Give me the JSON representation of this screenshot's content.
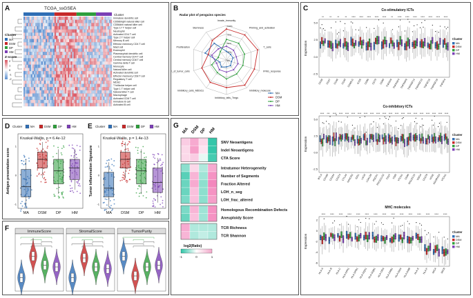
{
  "colors": {
    "MA": "#2f6eb5",
    "DSM": "#c62828",
    "DP": "#2e9e3c",
    "HM": "#7b3fb5",
    "heat_hi": "#d9535f",
    "heat_lo": "#5b8fd0",
    "pink": "#f2a7c9",
    "teal": "#2ec4a6"
  },
  "panels": {
    "A": {
      "letter": "A",
      "title": "TCGA_ssGSEA",
      "cluster_label": "Cluster",
      "legend_cluster_title": "Cluster",
      "legend_clusters": [
        "MA",
        "DSM",
        "DP",
        "HM"
      ],
      "legend_z_title": "Z-score",
      "legend_z_ticks": [
        "2",
        "1",
        "0",
        "-1",
        "-2"
      ],
      "rows": [
        "Immature dendritic cell",
        "CD56bright natural killer cell",
        "CD56dim natural killer cell",
        "Type 17 T helper cell",
        "Neutrophil",
        "Activated CD4 T cell",
        "Type 2 T helper cell",
        "Memory B cell",
        "Effector memeory CD4 T cell",
        "Mast cell",
        "Eosinophil",
        "Plasmacytoid dendritic cell",
        "Central memory CD4 T cell",
        "Central memory CD8 T cell",
        "Gamma delta T cell",
        "Monocyte",
        "Natural killer cell",
        "Activated dendritic cell",
        "Effector memeory CD8 T cell",
        "Regulatory T cell",
        "MDSC",
        "T follicular helper cell",
        "Type 1 T helper cell",
        "Natural killer T cell",
        "Macrophage",
        "Activated CD8 T cell",
        "Immature B cell",
        "Activated B cell"
      ]
    },
    "B": {
      "letter": "B",
      "title": "Radar plot of penguins species",
      "axes": [
        "Innate_immunity",
        "Priming_and_activation",
        "T_cells",
        "IFNG_response",
        "Inhibitory_molecule",
        "Inhibitory_tells_Tregs",
        "Inhibitory_cells_MDSCs",
        "Recognition_of_tumor_cells",
        "Proliferation",
        "Stemness"
      ],
      "ring_labels": [
        "0%",
        "25%",
        "50%",
        "75%",
        "100%"
      ],
      "legend": [
        "MA",
        "DSM",
        "DP",
        "HM"
      ]
    },
    "C": {
      "letter": "C",
      "sub1": {
        "title": "Co-stimulatory ICTs",
        "ylabel": "Expression",
        "yticks": [
          "5.0",
          "2.5",
          "0.0",
          "-2.5"
        ],
        "genes": [
          "CD28",
          "CD27",
          "CD48",
          "CD40",
          "CD80LG",
          "ICOS",
          "CD86",
          "CD70",
          "CD80",
          "TNFSF9",
          "TNFRSF4",
          "TNFRSF8",
          "TNFRSF14",
          "TNFRSF13",
          "TNFSF15",
          "TNFRSF18",
          "TNFSF4"
        ],
        "sig": [
          "**",
          "**",
          "**",
          "**",
          "****",
          "****",
          "****",
          "****",
          "****",
          "**",
          "****",
          "****",
          "****",
          "****",
          "****",
          "****",
          "****"
        ]
      },
      "sub2": {
        "title": "Co-inhibitory ICTs",
        "ylabel": "Expression",
        "yticks": [
          "5.0",
          "2.5",
          "0.0",
          "-2.5"
        ],
        "genes": [
          "BTLA",
          "CD160",
          "CD244",
          "CD274",
          "CTLA4",
          "HAVCR2",
          "IDO1",
          "LAG3",
          "LGALS9",
          "PDCD1",
          "PDCD1LG2",
          "TIGIT",
          "VSIR",
          "VTCN1",
          "CD96",
          "SIGLEC15",
          "VSIG4",
          "CD276",
          "NT5E",
          "ADORA2A",
          "VTCN1"
        ],
        "sig": [
          "****",
          "***",
          "****",
          "****",
          "****",
          "****",
          "****",
          "****",
          "****",
          "****",
          "****",
          "****",
          "****",
          "****",
          "****",
          "****",
          "****",
          "****",
          "****",
          "****",
          "****"
        ]
      },
      "sub3": {
        "title": "MHC molecules",
        "ylabel": "Expression",
        "yticks": [
          "2",
          "0",
          "-2",
          "-4",
          "-6"
        ],
        "genes": [
          "HLA-A",
          "HLA-B",
          "HLA-C",
          "HLA-DPA1",
          "HLA-DPB1",
          "HLA-DQA1",
          "HLA-DQB1",
          "HLA-DRA",
          "HLA-DRB1",
          "HLA-DMA",
          "HLA-DMB",
          "HLA-E",
          "HLA-F",
          "MICA",
          "MICB"
        ],
        "sig": [
          "****",
          "****",
          "****",
          "****",
          "****",
          "****",
          "****",
          "****",
          "****",
          "****",
          "****",
          "****",
          "****",
          "****",
          "****"
        ]
      },
      "legend_title": "Cluster",
      "legend": [
        "MA",
        "DSM",
        "DP",
        "HM"
      ]
    },
    "D": {
      "letter": "D",
      "legend_title": "Cluster",
      "legend": [
        "MA",
        "DSM",
        "DP",
        "HM"
      ],
      "stat": "Kruskal-Wallis, p = 6.4e-12",
      "ylabel": "Antigen presentation score",
      "categories": [
        "MA",
        "DSM",
        "DP",
        "HM"
      ]
    },
    "E": {
      "letter": "E",
      "legend_title": "Cluster",
      "legend": [
        "MA",
        "DSM",
        "DP",
        "HM"
      ],
      "stat": "Kruskal-Wallis, p = 1.4e-13",
      "ylabel": "Tumor Inflammation Signature",
      "categories": [
        "MA",
        "DSM",
        "DP",
        "HM"
      ]
    },
    "F": {
      "letter": "F",
      "facets": [
        "ImmuneScore",
        "StromalScore",
        "TumorPurity"
      ]
    },
    "G": {
      "letter": "G",
      "columns": [
        "MA",
        "DSM",
        "DP",
        "HM"
      ],
      "groups": [
        [
          "SNV Neoantigens",
          "Indel Neoantigens",
          "CTA Score"
        ],
        [
          "Intratumor Heterogeneity",
          "Number of Segments",
          "Fraction Altered",
          "LOH_n_seg",
          "LOH_frac_altered"
        ],
        [
          "Homologous Recombination Defects",
          "Aneuploidy Score"
        ],
        [
          "TCR Richness",
          "TCR Shannon"
        ]
      ],
      "legend_title": "log2(Ratio)",
      "legend_ticks": [
        "-1",
        "0",
        "1"
      ]
    }
  },
  "chart_data": [
    {
      "type": "heatmap",
      "title": "TCGA_ssGSEA",
      "clusters": [
        "MA",
        "DSM",
        "DP",
        "HM"
      ]
    },
    {
      "type": "line",
      "subtype": "radar",
      "title": "Radar plot of penguins species",
      "categories": [
        "Innate_immunity",
        "Priming_and_activation",
        "T_cells",
        "IFNG_response",
        "Inhibitory_molecule",
        "Inhibitory_tells_Tregs",
        "Inhibitory_cells_MDSCs",
        "Recognition_of_tumor_cells",
        "Proliferation",
        "Stemness"
      ],
      "series": [
        {
          "name": "MA",
          "values": [
            0.25,
            0.2,
            0.2,
            0.15,
            0.2,
            0.2,
            0.25,
            0.2,
            0.65,
            0.6
          ]
        },
        {
          "name": "DSM",
          "values": [
            0.9,
            0.9,
            0.95,
            0.85,
            0.9,
            0.8,
            0.8,
            0.75,
            0.55,
            0.7
          ]
        },
        {
          "name": "DP",
          "values": [
            0.6,
            0.6,
            0.55,
            0.5,
            0.5,
            0.55,
            0.45,
            0.45,
            0.25,
            0.3
          ]
        },
        {
          "name": "HM",
          "values": [
            0.4,
            0.35,
            0.3,
            0.35,
            0.35,
            0.35,
            0.35,
            0.3,
            0.45,
            0.4
          ]
        }
      ]
    },
    {
      "type": "bar",
      "subtype": "box",
      "ylabel": "Antigen presentation score",
      "categories": [
        "MA",
        "DSM",
        "DP",
        "HM"
      ],
      "medians": [
        -0.4,
        0.55,
        0.15,
        0.25
      ],
      "q1": [
        -0.75,
        0.25,
        -0.3,
        -0.15
      ],
      "q3": [
        0.2,
        0.8,
        0.55,
        0.55
      ]
    },
    {
      "type": "bar",
      "subtype": "box",
      "ylabel": "Tumor Inflammation Signature",
      "categories": [
        "MA",
        "DSM",
        "DP",
        "HM"
      ],
      "medians": [
        -0.45,
        0.55,
        0.15,
        -0.25
      ],
      "q1": [
        -0.75,
        0.25,
        -0.3,
        -0.6
      ],
      "q3": [
        0.1,
        0.8,
        0.55,
        0.25
      ]
    },
    {
      "type": "bar",
      "subtype": "violin",
      "facets": [
        "ImmuneScore",
        "StromalScore",
        "TumorPurity"
      ],
      "categories": [
        "MA",
        "DSM",
        "DP",
        "HM"
      ],
      "medians": [
        [
          -0.6,
          0.6,
          0.1,
          0.0
        ],
        [
          -0.6,
          0.5,
          0.0,
          -0.1
        ],
        [
          0.6,
          -0.5,
          0.0,
          0.1
        ]
      ]
    },
    {
      "type": "heatmap",
      "columns": [
        "MA",
        "DSM",
        "DP",
        "HM"
      ],
      "rows": [
        "SNV Neoantigens",
        "Indel Neoantigens",
        "CTA Score",
        "Intratumor Heterogeneity",
        "Number of Segments",
        "Fraction Altered",
        "LOH_n_seg",
        "LOH_frac_altered",
        "Homologous Recombination Defects",
        "Aneuploidy Score",
        "TCR Richness",
        "TCR Shannon"
      ],
      "values": [
        [
          -0.3,
          -0.6,
          -0.2,
          1.0
        ],
        [
          -0.2,
          -0.7,
          -0.1,
          1.0
        ],
        [
          -0.2,
          -0.3,
          0.0,
          0.9
        ],
        [
          0.5,
          -0.2,
          0.3,
          -0.6
        ],
        [
          0.8,
          -0.5,
          0.4,
          -0.8
        ],
        [
          0.7,
          -0.6,
          0.5,
          -0.9
        ],
        [
          0.7,
          -0.4,
          0.5,
          -0.8
        ],
        [
          0.6,
          -0.4,
          0.5,
          -0.7
        ],
        [
          0.6,
          -0.5,
          0.4,
          -0.8
        ],
        [
          0.7,
          -0.4,
          0.4,
          -0.8
        ],
        [
          -0.6,
          0.3,
          0.3,
          0.3
        ],
        [
          -0.5,
          0.3,
          0.2,
          0.3
        ]
      ]
    }
  ]
}
